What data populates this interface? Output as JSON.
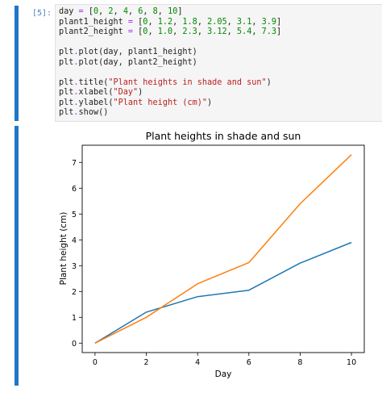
{
  "notebook": {
    "prompt": "[5]:",
    "code_lines": [
      [
        {
          "t": "day ",
          "c": "#222222"
        },
        {
          "t": "=",
          "c": "#aa22ff"
        },
        {
          "t": " [",
          "c": "#222222"
        },
        {
          "t": "0",
          "c": "#008800"
        },
        {
          "t": ", ",
          "c": "#222222"
        },
        {
          "t": "2",
          "c": "#008800"
        },
        {
          "t": ", ",
          "c": "#222222"
        },
        {
          "t": "4",
          "c": "#008800"
        },
        {
          "t": ", ",
          "c": "#222222"
        },
        {
          "t": "6",
          "c": "#008800"
        },
        {
          "t": ", ",
          "c": "#222222"
        },
        {
          "t": "8",
          "c": "#008800"
        },
        {
          "t": ", ",
          "c": "#222222"
        },
        {
          "t": "10",
          "c": "#008800"
        },
        {
          "t": "]",
          "c": "#222222"
        }
      ],
      [
        {
          "t": "plant1_height ",
          "c": "#222222"
        },
        {
          "t": "=",
          "c": "#aa22ff"
        },
        {
          "t": " [",
          "c": "#222222"
        },
        {
          "t": "0",
          "c": "#008800"
        },
        {
          "t": ", ",
          "c": "#222222"
        },
        {
          "t": "1.2",
          "c": "#008800"
        },
        {
          "t": ", ",
          "c": "#222222"
        },
        {
          "t": "1.8",
          "c": "#008800"
        },
        {
          "t": ", ",
          "c": "#222222"
        },
        {
          "t": "2.05",
          "c": "#008800"
        },
        {
          "t": ", ",
          "c": "#222222"
        },
        {
          "t": "3.1",
          "c": "#008800"
        },
        {
          "t": ", ",
          "c": "#222222"
        },
        {
          "t": "3.9",
          "c": "#008800"
        },
        {
          "t": "]",
          "c": "#222222"
        }
      ],
      [
        {
          "t": "plant2_height ",
          "c": "#222222"
        },
        {
          "t": "=",
          "c": "#aa22ff"
        },
        {
          "t": " [",
          "c": "#222222"
        },
        {
          "t": "0",
          "c": "#008800"
        },
        {
          "t": ", ",
          "c": "#222222"
        },
        {
          "t": "1.0",
          "c": "#008800"
        },
        {
          "t": ", ",
          "c": "#222222"
        },
        {
          "t": "2.3",
          "c": "#008800"
        },
        {
          "t": ", ",
          "c": "#222222"
        },
        {
          "t": "3.12",
          "c": "#008800"
        },
        {
          "t": ", ",
          "c": "#222222"
        },
        {
          "t": "5.4",
          "c": "#008800"
        },
        {
          "t": ", ",
          "c": "#222222"
        },
        {
          "t": "7.3",
          "c": "#008800"
        },
        {
          "t": "]",
          "c": "#222222"
        }
      ],
      [],
      [
        {
          "t": "plt",
          "c": "#222222"
        },
        {
          "t": ".",
          "c": "#aa22ff"
        },
        {
          "t": "plot(day, plant1_height)",
          "c": "#222222"
        }
      ],
      [
        {
          "t": "plt",
          "c": "#222222"
        },
        {
          "t": ".",
          "c": "#aa22ff"
        },
        {
          "t": "plot(day, plant2_height)",
          "c": "#222222"
        }
      ],
      [],
      [
        {
          "t": "plt",
          "c": "#222222"
        },
        {
          "t": ".",
          "c": "#aa22ff"
        },
        {
          "t": "title(",
          "c": "#222222"
        },
        {
          "t": "\"Plant heights in shade and sun\"",
          "c": "#ba2121"
        },
        {
          "t": ")",
          "c": "#222222"
        }
      ],
      [
        {
          "t": "plt",
          "c": "#222222"
        },
        {
          "t": ".",
          "c": "#aa22ff"
        },
        {
          "t": "xlabel(",
          "c": "#222222"
        },
        {
          "t": "\"Day\"",
          "c": "#ba2121"
        },
        {
          "t": ")",
          "c": "#222222"
        }
      ],
      [
        {
          "t": "plt",
          "c": "#222222"
        },
        {
          "t": ".",
          "c": "#aa22ff"
        },
        {
          "t": "ylabel(",
          "c": "#222222"
        },
        {
          "t": "\"Plant height (cm)\"",
          "c": "#ba2121"
        },
        {
          "t": ")",
          "c": "#222222"
        }
      ],
      [
        {
          "t": "plt",
          "c": "#222222"
        },
        {
          "t": ".",
          "c": "#aa22ff"
        },
        {
          "t": "show()",
          "c": "#222222"
        }
      ]
    ]
  },
  "chart_data": {
    "type": "line",
    "title": "Plant heights in shade and sun",
    "xlabel": "Day",
    "ylabel": "Plant height (cm)",
    "x": [
      0,
      2,
      4,
      6,
      8,
      10
    ],
    "series": [
      {
        "values": [
          0,
          1.2,
          1.8,
          2.05,
          3.1,
          3.9
        ],
        "color": "#1f77b4"
      },
      {
        "values": [
          0,
          1.0,
          2.3,
          3.12,
          5.4,
          7.3
        ],
        "color": "#ff7f0e"
      }
    ],
    "xticks": [
      0,
      2,
      4,
      6,
      8,
      10
    ],
    "yticks": [
      0,
      1,
      2,
      3,
      4,
      5,
      6,
      7
    ],
    "xlim": [
      -0.5,
      10.5
    ],
    "ylim": [
      -0.365,
      7.665
    ],
    "grid": false
  },
  "colors": {
    "cell_accent": "#1e78c8",
    "prompt": "#4a7fc0"
  }
}
